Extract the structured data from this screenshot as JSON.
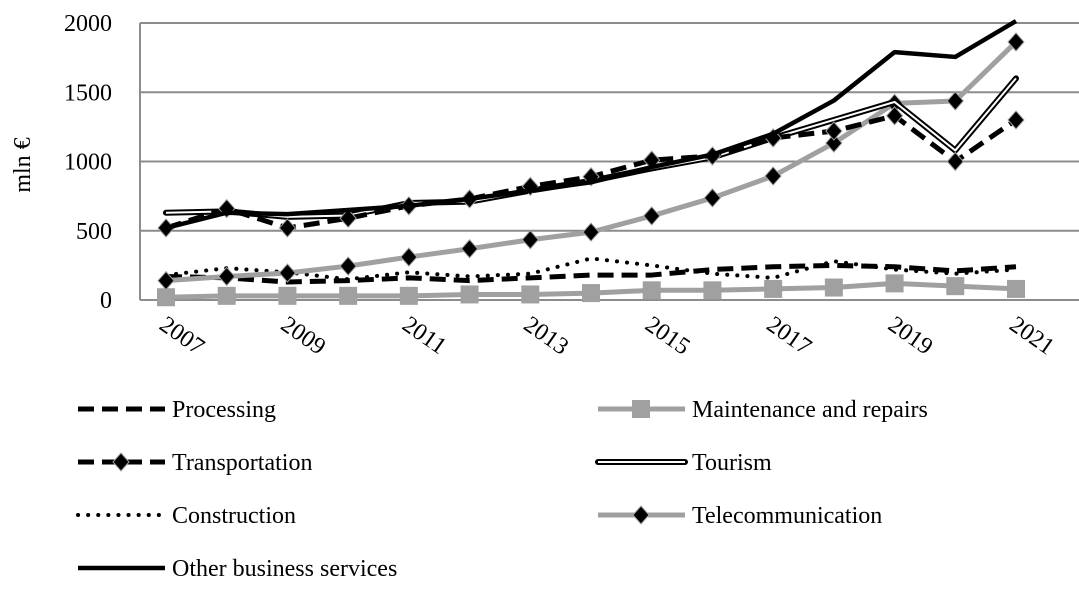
{
  "chart_data": {
    "type": "line",
    "title": "",
    "xlabel": "",
    "ylabel": "mln €",
    "ylim": [
      0,
      2000
    ],
    "yticks": [
      0,
      500,
      1000,
      1500,
      2000
    ],
    "grid": true,
    "legend_position": "bottom",
    "x": [
      2007,
      2008,
      2009,
      2010,
      2011,
      2012,
      2013,
      2014,
      2015,
      2016,
      2017,
      2018,
      2019,
      2020,
      2021
    ],
    "xtick_labels": [
      "2007",
      "2009",
      "2011",
      "2013",
      "2015",
      "2017",
      "2019",
      "2021"
    ],
    "series": [
      {
        "name": "Processing",
        "style": "dashed",
        "color": "#000000",
        "marker": "none",
        "values": [
          170,
          160,
          130,
          140,
          160,
          140,
          160,
          180,
          180,
          220,
          240,
          250,
          240,
          210,
          240
        ]
      },
      {
        "name": "Maintenance and repairs",
        "style": "solid",
        "color": "#a0a0a0",
        "marker": "square",
        "values": [
          20,
          30,
          30,
          30,
          30,
          40,
          40,
          50,
          70,
          70,
          80,
          90,
          120,
          100,
          80
        ]
      },
      {
        "name": "Transportation",
        "style": "dashed",
        "color": "#000000",
        "marker": "diamond",
        "values": [
          520,
          660,
          520,
          590,
          680,
          730,
          820,
          890,
          1010,
          1040,
          1170,
          1220,
          1330,
          1000,
          1300
        ]
      },
      {
        "name": "Tourism",
        "style": "double",
        "color": "#000000",
        "marker": "none",
        "values": [
          630,
          640,
          600,
          610,
          700,
          710,
          790,
          860,
          950,
          1030,
          1170,
          1300,
          1430,
          1080,
          1600
        ]
      },
      {
        "name": "Construction",
        "style": "dotted",
        "color": "#000000",
        "marker": "none",
        "values": [
          180,
          230,
          200,
          150,
          200,
          170,
          190,
          300,
          250,
          190,
          160,
          280,
          220,
          190,
          220
        ]
      },
      {
        "name": "Telecommunication",
        "style": "solid",
        "color": "#a0a0a0",
        "marker": "diamond",
        "values": [
          140,
          170,
          195,
          245,
          310,
          370,
          435,
          490,
          607,
          737,
          895,
          1133,
          1420,
          1437,
          1863
        ]
      },
      {
        "name": "Other business services",
        "style": "solid",
        "color": "#000000",
        "marker": "none",
        "values": [
          520,
          630,
          620,
          650,
          680,
          730,
          790,
          850,
          960,
          1050,
          1200,
          1440,
          1790,
          1755,
          2050
        ]
      }
    ]
  }
}
